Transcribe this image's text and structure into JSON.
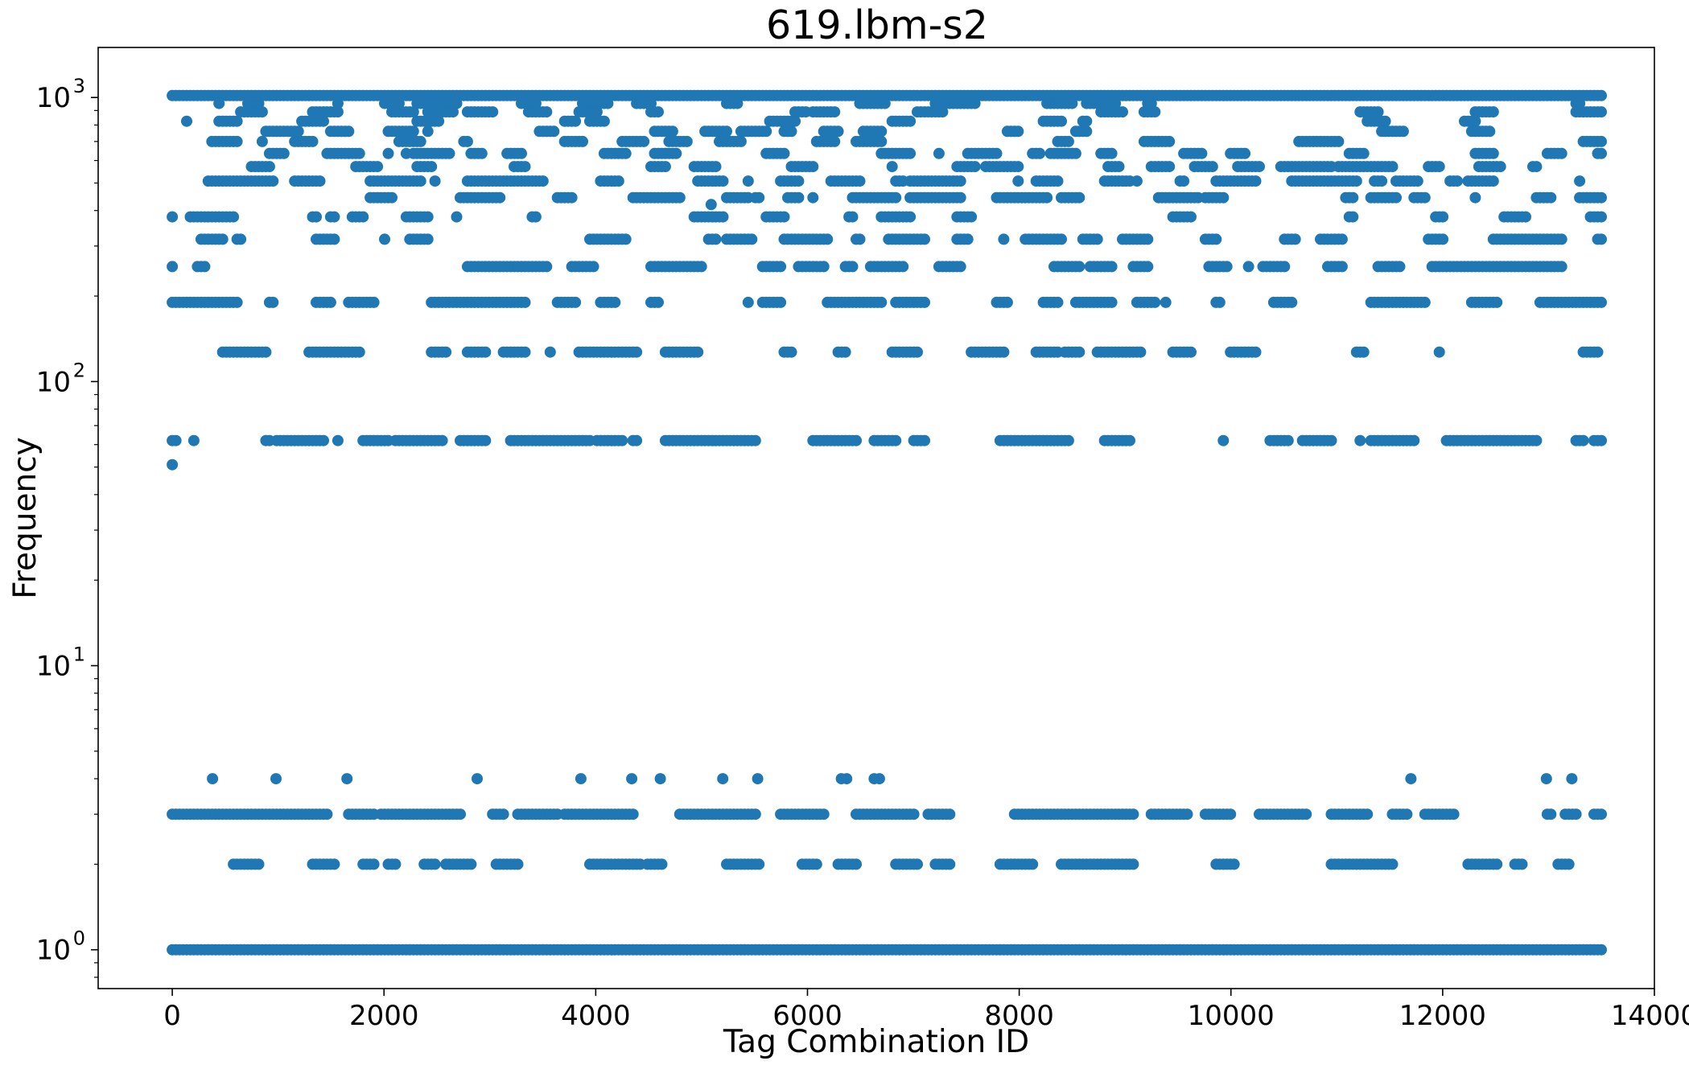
{
  "chart_data": {
    "type": "scatter",
    "title": "619.lbm-s2",
    "xlabel": "Tag Combination ID",
    "ylabel": "Frequency",
    "xlim": [
      -700,
      14000
    ],
    "ylim": [
      0.73,
      1500
    ],
    "y_scale": "log",
    "grid": false,
    "legend": "none",
    "x_ticks": [
      0,
      2000,
      4000,
      6000,
      8000,
      10000,
      12000,
      14000
    ],
    "x_tick_labels": [
      "0",
      "2000",
      "4000",
      "6000",
      "8000",
      "10000",
      "12000",
      "14000"
    ],
    "y_ticks": [
      1,
      10,
      100,
      1000
    ],
    "y_tick_labels": [
      {
        "base": "10",
        "exp": "0"
      },
      {
        "base": "10",
        "exp": "1"
      },
      {
        "base": "10",
        "exp": "2"
      },
      {
        "base": "10",
        "exp": "3"
      }
    ],
    "x_max_id": 13500,
    "marker_color": "#1f77b4",
    "series": [
      {
        "levels": [
          {
            "y": 1,
            "density": 1.0
          },
          {
            "y": 2,
            "density": 0.45,
            "x_end": 13300
          },
          {
            "y": 3,
            "density": 0.7
          },
          {
            "y": 62,
            "density": 0.55
          },
          {
            "y": 127,
            "density": 0.5
          },
          {
            "y": 190,
            "density": 0.35
          },
          {
            "y": 254,
            "density": 0.45
          },
          {
            "y": 317,
            "density": 0.35
          },
          {
            "y": 380,
            "density": 0.25
          },
          {
            "y": 444,
            "density": 0.35
          },
          {
            "y": 508,
            "density": 0.45
          },
          {
            "y": 571,
            "density": 0.25
          },
          {
            "y": 635,
            "density": 0.3
          },
          {
            "y": 700,
            "density": 0.2
          },
          {
            "y": 760,
            "density": 0.25
          },
          {
            "y": 825,
            "density": 0.2
          },
          {
            "y": 890,
            "density": 0.25
          },
          {
            "y": 953,
            "density": 0.25
          },
          {
            "y": 1016,
            "density": 1.0
          }
        ],
        "points": [
          {
            "x": 0,
            "y": 51
          },
          {
            "x": 380,
            "y": 4
          },
          {
            "x": 980,
            "y": 4
          },
          {
            "x": 1650,
            "y": 4
          },
          {
            "x": 2880,
            "y": 4
          },
          {
            "x": 3860,
            "y": 4
          },
          {
            "x": 4340,
            "y": 4
          },
          {
            "x": 4610,
            "y": 4
          },
          {
            "x": 5200,
            "y": 4
          },
          {
            "x": 5530,
            "y": 4
          },
          {
            "x": 6320,
            "y": 4
          },
          {
            "x": 6370,
            "y": 4
          },
          {
            "x": 6630,
            "y": 4
          },
          {
            "x": 6680,
            "y": 4
          },
          {
            "x": 11700,
            "y": 4
          },
          {
            "x": 12980,
            "y": 4
          },
          {
            "x": 13220,
            "y": 4
          },
          {
            "x": 5090,
            "y": 420
          }
        ]
      }
    ]
  }
}
